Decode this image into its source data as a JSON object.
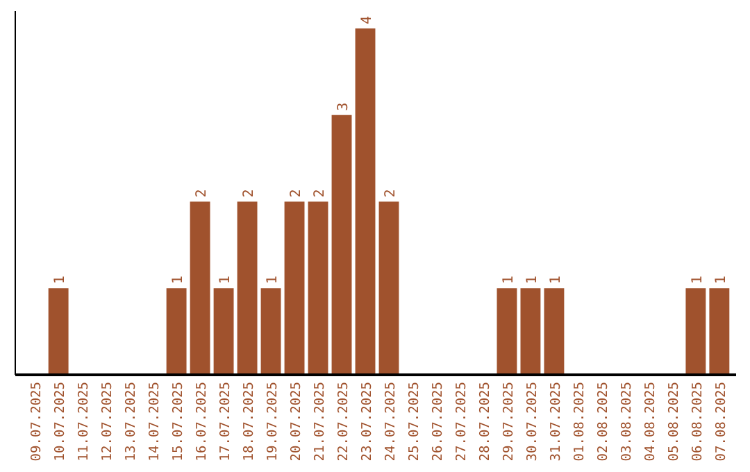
{
  "chart_data": {
    "type": "bar",
    "categories": [
      "09.07.2025",
      "10.07.2025",
      "11.07.2025",
      "12.07.2025",
      "13.07.2025",
      "14.07.2025",
      "15.07.2025",
      "16.07.2025",
      "17.07.2025",
      "18.07.2025",
      "19.07.2025",
      "20.07.2025",
      "21.07.2025",
      "22.07.2025",
      "23.07.2025",
      "24.07.2025",
      "25.07.2025",
      "26.07.2025",
      "27.07.2025",
      "28.07.2025",
      "29.07.2025",
      "30.07.2025",
      "31.07.2025",
      "01.08.2025",
      "02.08.2025",
      "03.08.2025",
      "04.08.2025",
      "05.08.2025",
      "06.08.2025",
      "07.08.2025"
    ],
    "values": [
      0,
      1,
      0,
      0,
      0,
      0,
      1,
      2,
      1,
      2,
      1,
      2,
      2,
      3,
      4,
      2,
      0,
      0,
      0,
      0,
      1,
      1,
      1,
      0,
      0,
      0,
      0,
      0,
      1,
      1
    ],
    "value_labels": [
      null,
      "1",
      null,
      null,
      null,
      null,
      "1",
      "2",
      "1",
      "2",
      "1",
      "2",
      "2",
      "3",
      "4",
      "2",
      null,
      null,
      null,
      null,
      "1",
      "1",
      "1",
      null,
      null,
      null,
      null,
      null,
      "1",
      "1"
    ],
    "color": "#a0522d",
    "ylim": [
      0,
      4.2
    ],
    "tick_labels": "x"
  }
}
